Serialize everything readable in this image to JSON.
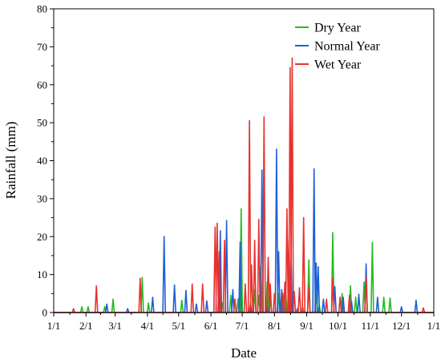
{
  "chart_data": {
    "type": "line",
    "title": "",
    "xlabel": "Date",
    "ylabel": "Rainfall (mm)",
    "x_ticks": [
      "1/1",
      "2/1",
      "3/1",
      "4/1",
      "5/1",
      "6/1",
      "7/1",
      "8/1",
      "9/1",
      "10/1",
      "11/1",
      "12/1",
      "1/1"
    ],
    "xlim": [
      "1/1",
      "1/1 (next year)"
    ],
    "ylim": [
      0,
      80
    ],
    "y_ticks": [
      0,
      10,
      20,
      30,
      40,
      50,
      60,
      70,
      80
    ],
    "grid": false,
    "legend_position": "top-right",
    "series": [
      {
        "name": "Dry Year",
        "color": "#22bb22",
        "points": [
          [
            "1/28",
            1.5
          ],
          [
            "2/3",
            1.5
          ],
          [
            "2/19",
            1.5
          ],
          [
            "2/27",
            3.5
          ],
          [
            "3/27",
            9.2
          ],
          [
            "4/2",
            2.5
          ],
          [
            "5/4",
            3.2
          ],
          [
            "6/12",
            2.5
          ],
          [
            "6/20",
            4.5
          ],
          [
            "6/27",
            3.5
          ],
          [
            "6/30",
            27.3
          ],
          [
            "7/13",
            6
          ],
          [
            "7/17",
            4.5
          ],
          [
            "7/19",
            12
          ],
          [
            "7/25",
            8
          ],
          [
            "7/28",
            4
          ],
          [
            "8/5",
            5
          ],
          [
            "8/12",
            4.5
          ],
          [
            "8/18",
            3
          ],
          [
            "8/28",
            1.5
          ],
          [
            "9/3",
            13.8
          ],
          [
            "9/10",
            5
          ],
          [
            "9/13",
            2
          ],
          [
            "9/26",
            21
          ],
          [
            "10/5",
            5
          ],
          [
            "10/13",
            7
          ],
          [
            "10/18",
            4
          ],
          [
            "10/26",
            8
          ],
          [
            "11/3",
            18.5
          ],
          [
            "11/14",
            4
          ],
          [
            "11/20",
            3.8
          ]
        ]
      },
      {
        "name": "Normal Year",
        "color": "#1f5fd6",
        "points": [
          [
            "2/21",
            2.2
          ],
          [
            "3/13",
            1
          ],
          [
            "4/6",
            4
          ],
          [
            "4/17",
            20
          ],
          [
            "4/27",
            7.2
          ],
          [
            "5/8",
            5.8
          ],
          [
            "5/18",
            2.2
          ],
          [
            "5/28",
            3
          ],
          [
            "6/10",
            21.5
          ],
          [
            "6/16",
            24.2
          ],
          [
            "6/22",
            6
          ],
          [
            "6/29",
            18.5
          ],
          [
            "7/9",
            2.5
          ],
          [
            "7/20",
            37.5
          ],
          [
            "7/25",
            1.5
          ],
          [
            "8/3",
            43
          ],
          [
            "8/5",
            16
          ],
          [
            "8/8",
            6
          ],
          [
            "8/17",
            13.7
          ],
          [
            "8/23",
            1
          ],
          [
            "9/8",
            37.8
          ],
          [
            "9/10",
            13
          ],
          [
            "9/12",
            12
          ],
          [
            "9/17",
            3.5
          ],
          [
            "9/28",
            6.8
          ],
          [
            "10/6",
            4
          ],
          [
            "10/14",
            3
          ],
          [
            "10/21",
            4.8
          ],
          [
            "10/28",
            12.8
          ],
          [
            "11/8",
            4
          ],
          [
            "12/1",
            1.5
          ],
          [
            "12/15",
            3.2
          ]
        ]
      },
      {
        "name": "Wet Year",
        "color": "#e8312d",
        "points": [
          [
            "1/20",
            1
          ],
          [
            "2/11",
            7
          ],
          [
            "3/25",
            9
          ],
          [
            "5/14",
            7.5
          ],
          [
            "5/24",
            7.5
          ],
          [
            "6/5",
            22.5
          ],
          [
            "6/7",
            23.5
          ],
          [
            "6/9",
            16
          ],
          [
            "6/14",
            19
          ],
          [
            "6/24",
            3.5
          ],
          [
            "7/4",
            7.5
          ],
          [
            "7/8",
            50.5
          ],
          [
            "7/10",
            12.5
          ],
          [
            "7/13",
            19
          ],
          [
            "7/17",
            24.5
          ],
          [
            "7/22",
            51.5
          ],
          [
            "7/26",
            14.5
          ],
          [
            "7/28",
            7.5
          ],
          [
            "8/1",
            5
          ],
          [
            "8/9",
            5
          ],
          [
            "8/11",
            8
          ],
          [
            "8/13",
            27.3
          ],
          [
            "8/15",
            19
          ],
          [
            "8/16",
            64.5
          ],
          [
            "8/18",
            67
          ],
          [
            "8/20",
            5.5
          ],
          [
            "8/25",
            6.5
          ],
          [
            "8/29",
            25
          ],
          [
            "9/3",
            7
          ],
          [
            "9/20",
            3.5
          ],
          [
            "9/26",
            9
          ],
          [
            "10/3",
            4
          ],
          [
            "10/12",
            4.5
          ],
          [
            "10/28",
            9.5
          ],
          [
            "12/22",
            1.2
          ]
        ]
      }
    ]
  }
}
